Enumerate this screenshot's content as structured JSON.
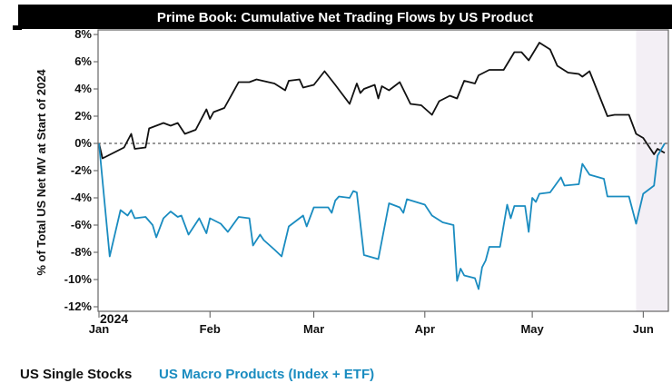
{
  "chart_data": {
    "type": "line",
    "title": "Prime Book: Cumulative Net Trading Flows by US Product",
    "ylabel": "% of Total US Net MV at Start of 2024",
    "xlabel": "",
    "year_label": "2024",
    "ylim": [
      -12,
      8
    ],
    "yticks": [
      8,
      6,
      4,
      2,
      0,
      -2,
      -4,
      -6,
      -8,
      -10,
      -12
    ],
    "ytick_labels": [
      "8%",
      "6%",
      "4%",
      "2%",
      "0%",
      "-2%",
      "-4%",
      "-6%",
      "-8%",
      "-10%",
      "-12%"
    ],
    "xlim": [
      "2024-01-01",
      "2024-06-07"
    ],
    "xticks": [
      "2024-01-01",
      "2024-02-01",
      "2024-03-01",
      "2024-04-01",
      "2024-05-01",
      "2024-06-01"
    ],
    "xtick_labels": [
      "Jan",
      "Feb",
      "Mar",
      "Apr",
      "May",
      "Jun"
    ],
    "zero_line": "dashed",
    "grid": false,
    "shaded_period": [
      "2024-05-30",
      "2024-06-07"
    ],
    "legend_placement": "bottom-left",
    "colors": {
      "title_bg": "#000000",
      "shade": "#f3eff5",
      "single_stocks": "#111111",
      "macro": "#1a8cc0"
    },
    "series": [
      {
        "name": "US Single Stocks",
        "color": "#111111",
        "points": [
          [
            "2024-01-01",
            0
          ],
          [
            "2024-01-02",
            -1.1
          ],
          [
            "2024-01-08",
            -0.3
          ],
          [
            "2024-01-10",
            0.7
          ],
          [
            "2024-01-11",
            -0.4
          ],
          [
            "2024-01-14",
            -0.3
          ],
          [
            "2024-01-15",
            1.1
          ],
          [
            "2024-01-19",
            1.5
          ],
          [
            "2024-01-21",
            1.3
          ],
          [
            "2024-01-23",
            1.5
          ],
          [
            "2024-01-25",
            0.7
          ],
          [
            "2024-01-28",
            1.0
          ],
          [
            "2024-01-31",
            2.5
          ],
          [
            "2024-02-01",
            1.8
          ],
          [
            "2024-02-02",
            2.3
          ],
          [
            "2024-02-05",
            2.6
          ],
          [
            "2024-02-09",
            4.5
          ],
          [
            "2024-02-12",
            4.5
          ],
          [
            "2024-02-14",
            4.7
          ],
          [
            "2024-02-19",
            4.4
          ],
          [
            "2024-02-22",
            3.9
          ],
          [
            "2024-02-23",
            4.6
          ],
          [
            "2024-02-26",
            4.7
          ],
          [
            "2024-02-27",
            4.1
          ],
          [
            "2024-03-01",
            4.3
          ],
          [
            "2024-03-04",
            5.3
          ],
          [
            "2024-03-07",
            4.3
          ],
          [
            "2024-03-09",
            3.6
          ],
          [
            "2024-03-11",
            2.9
          ],
          [
            "2024-03-13",
            4.4
          ],
          [
            "2024-03-14",
            3.7
          ],
          [
            "2024-03-15",
            4.0
          ],
          [
            "2024-03-18",
            4.3
          ],
          [
            "2024-03-19",
            3.3
          ],
          [
            "2024-03-20",
            4.2
          ],
          [
            "2024-03-22",
            3.9
          ],
          [
            "2024-03-25",
            4.5
          ],
          [
            "2024-03-28",
            2.9
          ],
          [
            "2024-03-31",
            2.8
          ],
          [
            "2024-04-03",
            2.1
          ],
          [
            "2024-04-05",
            3.1
          ],
          [
            "2024-04-08",
            3.5
          ],
          [
            "2024-04-10",
            3.3
          ],
          [
            "2024-04-12",
            4.6
          ],
          [
            "2024-04-15",
            4.4
          ],
          [
            "2024-04-16",
            5.0
          ],
          [
            "2024-04-19",
            5.4
          ],
          [
            "2024-04-23",
            5.4
          ],
          [
            "2024-04-26",
            6.7
          ],
          [
            "2024-04-28",
            6.7
          ],
          [
            "2024-04-30",
            6.1
          ],
          [
            "2024-05-03",
            7.4
          ],
          [
            "2024-05-06",
            6.9
          ],
          [
            "2024-05-08",
            5.7
          ],
          [
            "2024-05-11",
            5.2
          ],
          [
            "2024-05-14",
            5.1
          ],
          [
            "2024-05-15",
            4.9
          ],
          [
            "2024-05-17",
            5.3
          ],
          [
            "2024-05-22",
            2.0
          ],
          [
            "2024-05-24",
            2.1
          ],
          [
            "2024-05-28",
            2.1
          ],
          [
            "2024-05-30",
            0.7
          ],
          [
            "2024-06-01",
            0.4
          ],
          [
            "2024-06-04",
            -0.8
          ],
          [
            "2024-06-05",
            -0.4
          ],
          [
            "2024-06-07",
            -0.7
          ]
        ]
      },
      {
        "name": "US Macro Products (Index + ETF)",
        "color": "#1a8cc0",
        "points": [
          [
            "2024-01-01",
            0
          ],
          [
            "2024-01-04",
            -8.3
          ],
          [
            "2024-01-07",
            -4.9
          ],
          [
            "2024-01-09",
            -5.3
          ],
          [
            "2024-01-10",
            -4.9
          ],
          [
            "2024-01-11",
            -5.5
          ],
          [
            "2024-01-14",
            -5.4
          ],
          [
            "2024-01-16",
            -6.0
          ],
          [
            "2024-01-17",
            -6.9
          ],
          [
            "2024-01-19",
            -5.5
          ],
          [
            "2024-01-21",
            -5.0
          ],
          [
            "2024-01-23",
            -5.4
          ],
          [
            "2024-01-24",
            -5.3
          ],
          [
            "2024-01-26",
            -6.7
          ],
          [
            "2024-01-29",
            -5.5
          ],
          [
            "2024-01-31",
            -6.6
          ],
          [
            "2024-02-01",
            -5.5
          ],
          [
            "2024-02-04",
            -5.9
          ],
          [
            "2024-02-06",
            -6.5
          ],
          [
            "2024-02-09",
            -5.4
          ],
          [
            "2024-02-12",
            -5.5
          ],
          [
            "2024-02-13",
            -7.5
          ],
          [
            "2024-02-15",
            -6.7
          ],
          [
            "2024-02-16",
            -7.1
          ],
          [
            "2024-02-19",
            -7.8
          ],
          [
            "2024-02-21",
            -8.3
          ],
          [
            "2024-02-23",
            -6.1
          ],
          [
            "2024-02-27",
            -5.3
          ],
          [
            "2024-02-28",
            -6.1
          ],
          [
            "2024-03-01",
            -4.7
          ],
          [
            "2024-03-05",
            -4.7
          ],
          [
            "2024-03-06",
            -5.1
          ],
          [
            "2024-03-07",
            -4.2
          ],
          [
            "2024-03-08",
            -3.9
          ],
          [
            "2024-03-11",
            -4.0
          ],
          [
            "2024-03-12",
            -3.5
          ],
          [
            "2024-03-13",
            -3.6
          ],
          [
            "2024-03-15",
            -8.2
          ],
          [
            "2024-03-19",
            -8.5
          ],
          [
            "2024-03-22",
            -4.4
          ],
          [
            "2024-03-25",
            -4.7
          ],
          [
            "2024-03-26",
            -5.1
          ],
          [
            "2024-03-27",
            -4.1
          ],
          [
            "2024-04-01",
            -4.5
          ],
          [
            "2024-04-03",
            -5.3
          ],
          [
            "2024-04-06",
            -5.8
          ],
          [
            "2024-04-09",
            -6.0
          ],
          [
            "2024-04-10",
            -10.1
          ],
          [
            "2024-04-11",
            -9.2
          ],
          [
            "2024-04-12",
            -9.7
          ],
          [
            "2024-04-15",
            -9.9
          ],
          [
            "2024-04-16",
            -10.7
          ],
          [
            "2024-04-17",
            -9.1
          ],
          [
            "2024-04-18",
            -8.6
          ],
          [
            "2024-04-19",
            -7.6
          ],
          [
            "2024-04-22",
            -7.6
          ],
          [
            "2024-04-24",
            -4.5
          ],
          [
            "2024-04-25",
            -5.5
          ],
          [
            "2024-04-26",
            -4.6
          ],
          [
            "2024-04-29",
            -4.6
          ],
          [
            "2024-04-30",
            -6.5
          ],
          [
            "2024-05-01",
            -4.0
          ],
          [
            "2024-05-02",
            -4.3
          ],
          [
            "2024-05-03",
            -3.7
          ],
          [
            "2024-05-06",
            -3.6
          ],
          [
            "2024-05-09",
            -2.5
          ],
          [
            "2024-05-10",
            -3.1
          ],
          [
            "2024-05-14",
            -3.0
          ],
          [
            "2024-05-15",
            -1.5
          ],
          [
            "2024-05-17",
            -2.3
          ],
          [
            "2024-05-21",
            -2.6
          ],
          [
            "2024-05-22",
            -3.9
          ],
          [
            "2024-05-28",
            -3.9
          ],
          [
            "2024-05-30",
            -5.9
          ],
          [
            "2024-06-01",
            -3.7
          ],
          [
            "2024-06-04",
            -3.1
          ],
          [
            "2024-06-05",
            -0.9
          ],
          [
            "2024-06-07",
            0.0
          ]
        ]
      }
    ]
  }
}
